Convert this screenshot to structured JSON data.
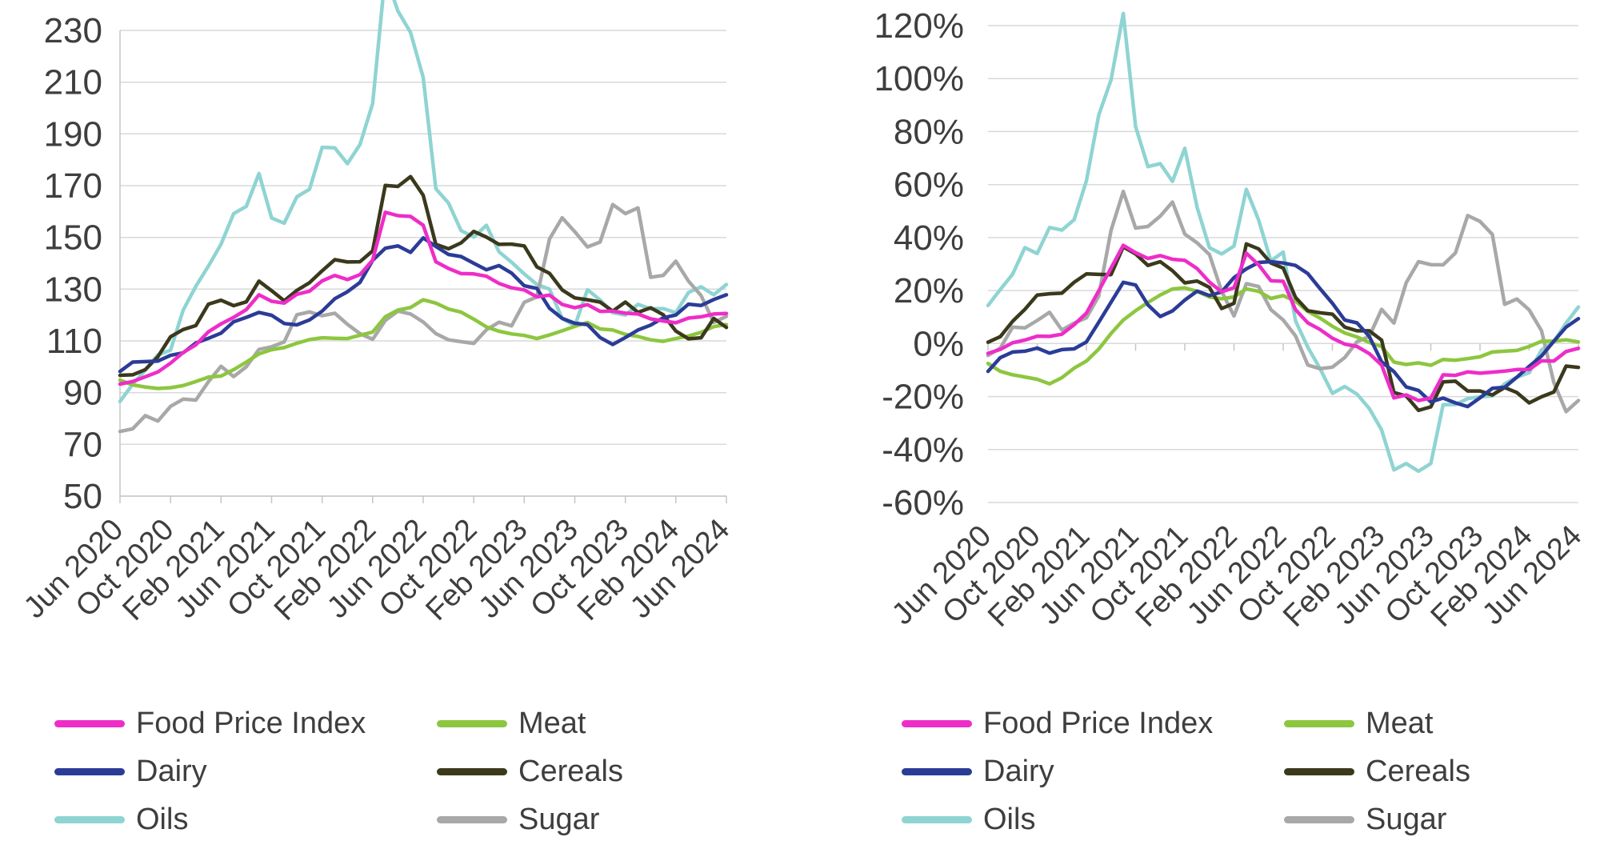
{
  "colors": {
    "background": "#FFFFFF",
    "text": "#3E3E3E",
    "gridline": "#D9D9D9",
    "axis": "#C6C6C6"
  },
  "chart_data": [
    {
      "type": "line",
      "title": "",
      "xlabel": "",
      "ylabel": "",
      "grid": true,
      "legend_position": "bottom",
      "y_axis": {
        "min": 50,
        "max": 230,
        "ticks": [
          {
            "label": "230",
            "value": 230
          },
          {
            "label": "210",
            "value": 210
          },
          {
            "label": "190",
            "value": 190
          },
          {
            "label": "170",
            "value": 170
          },
          {
            "label": "150",
            "value": 150
          },
          {
            "label": "130",
            "value": 130
          },
          {
            "label": "110",
            "value": 110
          },
          {
            "label": "90",
            "value": 90
          },
          {
            "label": "70",
            "value": 70
          },
          {
            "label": "50",
            "value": 50
          }
        ]
      },
      "x_axis": {
        "tick_labels": [
          "Jun 2020",
          "Oct 2020",
          "Feb 2021",
          "Jun 2021",
          "Oct 2021",
          "Feb 2022",
          "Jun 2022",
          "Oct 2022",
          "Feb 2023",
          "Jun 2023",
          "Oct 2023",
          "Feb 2024",
          "Jun 2024"
        ],
        "tick_every_n_points": 4,
        "resolution": "monthly"
      },
      "series": [
        {
          "name": "Food Price Index",
          "color": "#EE2DC8",
          "values": [
            93.3,
            94.3,
            96.1,
            98.0,
            101.4,
            105.5,
            108.5,
            113.5,
            116.6,
            119.1,
            122.1,
            127.8,
            125.3,
            124.6,
            128.0,
            129.2,
            133.2,
            135.3,
            133.7,
            135.6,
            141.2,
            159.7,
            158.4,
            158.1,
            154.7,
            140.6,
            138.0,
            136.0,
            135.9,
            135.0,
            132.2,
            130.5,
            129.7,
            127.0,
            127.7,
            124.1,
            122.8,
            124.0,
            121.4,
            121.5,
            120.7,
            120.4,
            118.5,
            117.7,
            117.0,
            118.8,
            119.3,
            120.4,
            120.6
          ]
        },
        {
          "name": "Meat",
          "color": "#8DC63F",
          "values": [
            94.8,
            93.0,
            92.2,
            91.6,
            91.9,
            92.7,
            94.3,
            96.0,
            96.4,
            98.9,
            101.8,
            105.0,
            106.6,
            107.4,
            109.1,
            110.5,
            111.2,
            111.0,
            110.9,
            112.2,
            113.4,
            119.3,
            121.9,
            122.9,
            125.9,
            124.6,
            122.3,
            121.1,
            118.4,
            115.4,
            113.7,
            112.7,
            112.1,
            110.9,
            112.3,
            113.9,
            115.6,
            117.1,
            114.6,
            114.2,
            112.5,
            111.7,
            110.4,
            109.8,
            110.9,
            111.9,
            113.3,
            115.5,
            116.3
          ]
        },
        {
          "name": "Dairy",
          "color": "#2B3C97",
          "values": [
            98.2,
            101.8,
            102.0,
            102.2,
            104.4,
            105.4,
            109.2,
            111.0,
            113.0,
            117.4,
            119.1,
            121.0,
            119.9,
            116.7,
            116.2,
            118.1,
            121.5,
            126.3,
            129.0,
            132.6,
            141.1,
            145.8,
            146.7,
            144.2,
            149.8,
            146.5,
            143.4,
            142.6,
            140.0,
            137.5,
            139.1,
            136.2,
            131.3,
            130.3,
            122.6,
            118.7,
            116.8,
            116.3,
            111.3,
            108.6,
            111.3,
            114.2,
            116.1,
            118.9,
            120.0,
            124.2,
            123.7,
            126.0,
            127.8
          ]
        },
        {
          "name": "Cereals",
          "color": "#3B391C",
          "values": [
            96.7,
            96.9,
            98.9,
            103.9,
            111.6,
            114.4,
            115.9,
            124.2,
            125.7,
            123.6,
            125.1,
            133.1,
            129.4,
            125.5,
            129.5,
            132.5,
            137.1,
            141.4,
            140.5,
            140.6,
            144.8,
            170.1,
            169.7,
            173.5,
            166.3,
            147.3,
            145.6,
            147.9,
            152.3,
            150.1,
            147.3,
            147.4,
            146.7,
            138.6,
            136.1,
            129.7,
            126.6,
            125.9,
            125.0,
            121.5,
            125.0,
            121.0,
            122.8,
            120.1,
            113.8,
            110.8,
            111.2,
            118.7,
            115.2
          ]
        },
        {
          "name": "Oils",
          "color": "#8ED4D2",
          "values": [
            86.6,
            93.2,
            98.7,
            104.6,
            106.4,
            121.9,
            131.1,
            138.9,
            147.4,
            159.2,
            162.0,
            174.7,
            157.5,
            155.5,
            165.7,
            168.6,
            184.8,
            184.6,
            178.5,
            185.9,
            201.7,
            251.8,
            237.5,
            229.2,
            211.8,
            168.8,
            163.3,
            152.6,
            150.1,
            154.7,
            144.4,
            140.4,
            135.9,
            131.8,
            130.0,
            118.7,
            115.8,
            129.8,
            125.8,
            120.9,
            120.0,
            124.1,
            122.4,
            122.5,
            120.9,
            128.7,
            130.9,
            127.8,
            131.8
          ]
        },
        {
          "name": "Sugar",
          "color": "#A8A8A8",
          "values": [
            75.0,
            76.0,
            81.1,
            79.0,
            84.7,
            87.5,
            87.1,
            94.2,
            100.2,
            96.2,
            100.0,
            106.7,
            107.7,
            109.6,
            120.1,
            121.2,
            119.7,
            120.7,
            116.4,
            112.8,
            110.6,
            117.9,
            121.5,
            120.4,
            117.3,
            112.8,
            110.4,
            109.7,
            109.0,
            114.3,
            117.2,
            115.8,
            124.9,
            127.0,
            149.4,
            157.6,
            152.2,
            146.3,
            148.2,
            162.7,
            159.2,
            161.4,
            134.6,
            135.3,
            140.8,
            133.1,
            127.5,
            117.1,
            119.5
          ]
        }
      ]
    },
    {
      "type": "line",
      "title": "",
      "xlabel": "",
      "ylabel": "",
      "grid": true,
      "legend_position": "bottom",
      "y_axis": {
        "min": -60,
        "max": 120,
        "ticks": [
          {
            "label": "120%",
            "value": 120
          },
          {
            "label": "100%",
            "value": 100
          },
          {
            "label": "80%",
            "value": 80
          },
          {
            "label": "60%",
            "value": 60
          },
          {
            "label": "40%",
            "value": 40
          },
          {
            "label": "20%",
            "value": 20
          },
          {
            "label": "0%",
            "value": 0
          },
          {
            "label": "-20%",
            "value": -20
          },
          {
            "label": "-40%",
            "value": -40
          },
          {
            "label": "-60%",
            "value": -60
          }
        ]
      },
      "x_axis": {
        "tick_labels": [
          "Jun 2020",
          "Oct 2020",
          "Feb 2021",
          "Jun 2021",
          "Oct 2021",
          "Feb 2022",
          "Jun 2022",
          "Oct 2022",
          "Feb 2023",
          "Jun 2023",
          "Oct 2023",
          "Feb 2024",
          "Jun 2024"
        ],
        "tick_every_n_points": 4,
        "resolution": "monthly"
      },
      "series": [
        {
          "name": "Food Price Index",
          "color": "#EE2DC8",
          "values": [
            -3.7,
            -2.2,
            0.3,
            1.3,
            2.8,
            2.7,
            3.5,
            7.1,
            11.5,
            19.9,
            28.5,
            37.1,
            34.3,
            32.1,
            33.2,
            31.8,
            31.4,
            28.3,
            23.2,
            19.5,
            21.1,
            34.1,
            29.7,
            23.7,
            23.5,
            12.8,
            7.8,
            5.3,
            2.0,
            -0.2,
            -1.1,
            -3.8,
            -8.1,
            -20.5,
            -19.4,
            -21.5,
            -20.6,
            -11.8,
            -12.0,
            -10.7,
            -11.2,
            -10.8,
            -10.4,
            -9.8,
            -9.8,
            -6.5,
            -6.6,
            -3.0,
            -1.8
          ]
        },
        {
          "name": "Meat",
          "color": "#8DC63F",
          "values": [
            -7.5,
            -10.5,
            -11.8,
            -12.6,
            -13.5,
            -15.2,
            -12.9,
            -9.3,
            -6.6,
            -2.1,
            3.8,
            8.9,
            12.4,
            15.5,
            18.3,
            20.6,
            21.0,
            19.7,
            17.6,
            16.9,
            17.6,
            20.6,
            19.7,
            17.0,
            18.1,
            16.0,
            12.1,
            9.6,
            6.5,
            4.0,
            2.5,
            0.4,
            -1.1,
            -7.0,
            -7.9,
            -7.3,
            -8.2,
            -6.0,
            -6.3,
            -5.7,
            -5.0,
            -3.2,
            -2.9,
            -2.6,
            -1.1,
            0.9,
            0.9,
            1.4,
            0.6
          ]
        },
        {
          "name": "Dairy",
          "color": "#2B3C97",
          "values": [
            -10.5,
            -5.3,
            -3.2,
            -2.9,
            -1.7,
            -3.6,
            -2.3,
            -2.0,
            0.6,
            8.0,
            15.6,
            23.1,
            22.1,
            14.6,
            10.2,
            12.3,
            16.4,
            19.8,
            18.1,
            19.5,
            24.9,
            28.2,
            30.6,
            30.9,
            30.4,
            29.5,
            26.4,
            20.7,
            15.2,
            8.9,
            7.8,
            2.7,
            -6.9,
            -10.6,
            -16.4,
            -17.7,
            -22.0,
            -20.6,
            -22.4,
            -23.8,
            -20.5,
            -16.9,
            -16.5,
            -12.7,
            -8.6,
            -4.7,
            0.9,
            6.2,
            9.4
          ]
        },
        {
          "name": "Cereals",
          "color": "#3B391C",
          "values": [
            0.5,
            2.6,
            8.4,
            12.9,
            18.3,
            18.8,
            19.0,
            23.1,
            26.3,
            26.1,
            26.0,
            36.5,
            33.8,
            29.5,
            30.9,
            27.5,
            22.9,
            23.6,
            21.2,
            13.2,
            15.2,
            37.6,
            35.7,
            30.4,
            28.5,
            17.4,
            12.4,
            11.6,
            11.1,
            6.2,
            4.8,
            4.8,
            1.3,
            -18.5,
            -19.8,
            -25.2,
            -23.9,
            -14.5,
            -14.2,
            -17.9,
            -17.9,
            -19.4,
            -16.6,
            -18.5,
            -22.4,
            -20.1,
            -18.3,
            -8.5,
            -9.0
          ]
        },
        {
          "name": "Oils",
          "color": "#8ED4D2",
          "values": [
            14.4,
            20.4,
            26.2,
            36.2,
            34.0,
            43.8,
            42.8,
            46.7,
            61.4,
            86.2,
            99.5,
            124.6,
            81.9,
            66.8,
            67.9,
            61.2,
            73.7,
            51.4,
            36.2,
            33.8,
            36.8,
            58.2,
            46.6,
            31.2,
            34.5,
            8.6,
            -1.4,
            -9.5,
            -18.8,
            -16.2,
            -19.1,
            -24.5,
            -32.6,
            -47.7,
            -45.3,
            -48.2,
            -45.3,
            -23.1,
            -23.0,
            -20.8,
            -20.1,
            -19.8,
            -15.2,
            -12.7,
            -11.0,
            -2.4,
            0.7,
            7.7,
            13.8
          ]
        },
        {
          "name": "Sugar",
          "color": "#A8A8A8",
          "values": [
            -4.5,
            -1.7,
            6.2,
            5.9,
            8.7,
            11.8,
            5.1,
            7.7,
            9.7,
            17.9,
            42.7,
            57.4,
            43.6,
            44.2,
            48.1,
            53.4,
            41.3,
            38.0,
            33.6,
            19.7,
            10.4,
            22.6,
            21.5,
            12.8,
            8.9,
            2.9,
            -8.1,
            -9.5,
            -8.9,
            -5.3,
            0.7,
            2.7,
            12.9,
            7.7,
            23.0,
            30.9,
            29.8,
            29.7,
            34.2,
            48.3,
            46.1,
            41.2,
            14.8,
            16.8,
            12.7,
            4.8,
            -14.7,
            -25.7,
            -21.5
          ]
        }
      ]
    }
  ]
}
